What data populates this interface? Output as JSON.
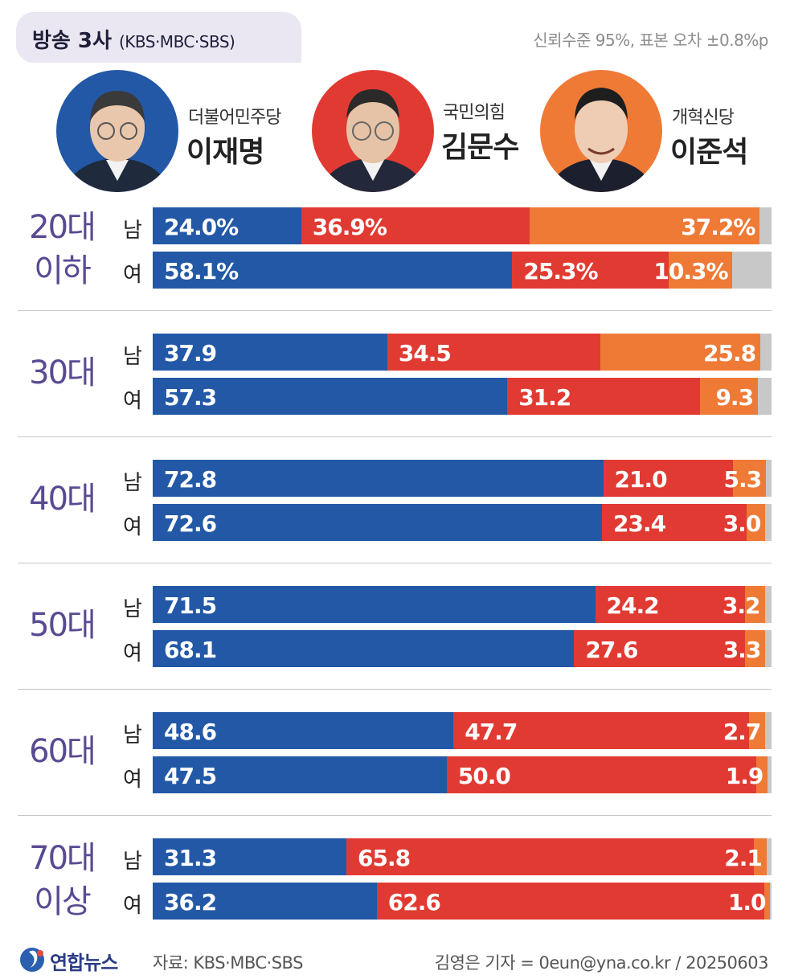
{
  "header": {
    "title": "방송 3사",
    "subtitle": "(KBS·MBC·SBS)",
    "confidence": "신뢰수준 95%, 표본 오차 ±0.8%p"
  },
  "candidates": [
    {
      "party": "더불어민주당",
      "name": "이재명",
      "color": "#2358a6"
    },
    {
      "party": "국민의힘",
      "name": "김문수",
      "color": "#e13a32"
    },
    {
      "party": "개혁신당",
      "name": "이준석",
      "color": "#ee7a36"
    }
  ],
  "colors": {
    "other": "#c8c8c8",
    "age_label": "#5a4a92"
  },
  "chart_data": {
    "type": "bar",
    "stacked": true,
    "orientation": "horizontal",
    "xlim": [
      0,
      100
    ],
    "series_names": [
      "이재명",
      "김문수",
      "이준석"
    ],
    "groups": [
      {
        "age": "20대\n이하",
        "rows": [
          {
            "gender": "남",
            "values": [
              24.0,
              36.9,
              37.2
            ],
            "labels": [
              "24.0%",
              "36.9%",
              "37.2%"
            ]
          },
          {
            "gender": "여",
            "values": [
              58.1,
              25.3,
              10.3
            ],
            "labels": [
              "58.1%",
              "25.3%",
              "10.3%"
            ]
          }
        ]
      },
      {
        "age": "30대",
        "rows": [
          {
            "gender": "남",
            "values": [
              37.9,
              34.5,
              25.8
            ],
            "labels": [
              "37.9",
              "34.5",
              "25.8"
            ]
          },
          {
            "gender": "여",
            "values": [
              57.3,
              31.2,
              9.3
            ],
            "labels": [
              "57.3",
              "31.2",
              "9.3"
            ]
          }
        ]
      },
      {
        "age": "40대",
        "rows": [
          {
            "gender": "남",
            "values": [
              72.8,
              21.0,
              5.3
            ],
            "labels": [
              "72.8",
              "21.0",
              "5.3"
            ]
          },
          {
            "gender": "여",
            "values": [
              72.6,
              23.4,
              3.0
            ],
            "labels": [
              "72.6",
              "23.4",
              "3.0"
            ]
          }
        ]
      },
      {
        "age": "50대",
        "rows": [
          {
            "gender": "남",
            "values": [
              71.5,
              24.2,
              3.2
            ],
            "labels": [
              "71.5",
              "24.2",
              "3.2"
            ]
          },
          {
            "gender": "여",
            "values": [
              68.1,
              27.6,
              3.3
            ],
            "labels": [
              "68.1",
              "27.6",
              "3.3"
            ]
          }
        ]
      },
      {
        "age": "60대",
        "rows": [
          {
            "gender": "남",
            "values": [
              48.6,
              47.7,
              2.7
            ],
            "labels": [
              "48.6",
              "47.7",
              "2.7"
            ]
          },
          {
            "gender": "여",
            "values": [
              47.5,
              50.0,
              1.9
            ],
            "labels": [
              "47.5",
              "50.0",
              "1.9"
            ]
          }
        ]
      },
      {
        "age": "70대\n이상",
        "rows": [
          {
            "gender": "남",
            "values": [
              31.3,
              65.8,
              2.1
            ],
            "labels": [
              "31.3",
              "65.8",
              "2.1"
            ]
          },
          {
            "gender": "여",
            "values": [
              36.2,
              62.6,
              1.0
            ],
            "labels": [
              "36.2",
              "62.6",
              "1.0"
            ]
          }
        ]
      }
    ]
  },
  "footer": {
    "brand": "연합뉴스",
    "source": "자료: KBS·MBC·SBS",
    "credit": "김영은 기자 = 0eun@yna.co.kr / 20250603"
  }
}
